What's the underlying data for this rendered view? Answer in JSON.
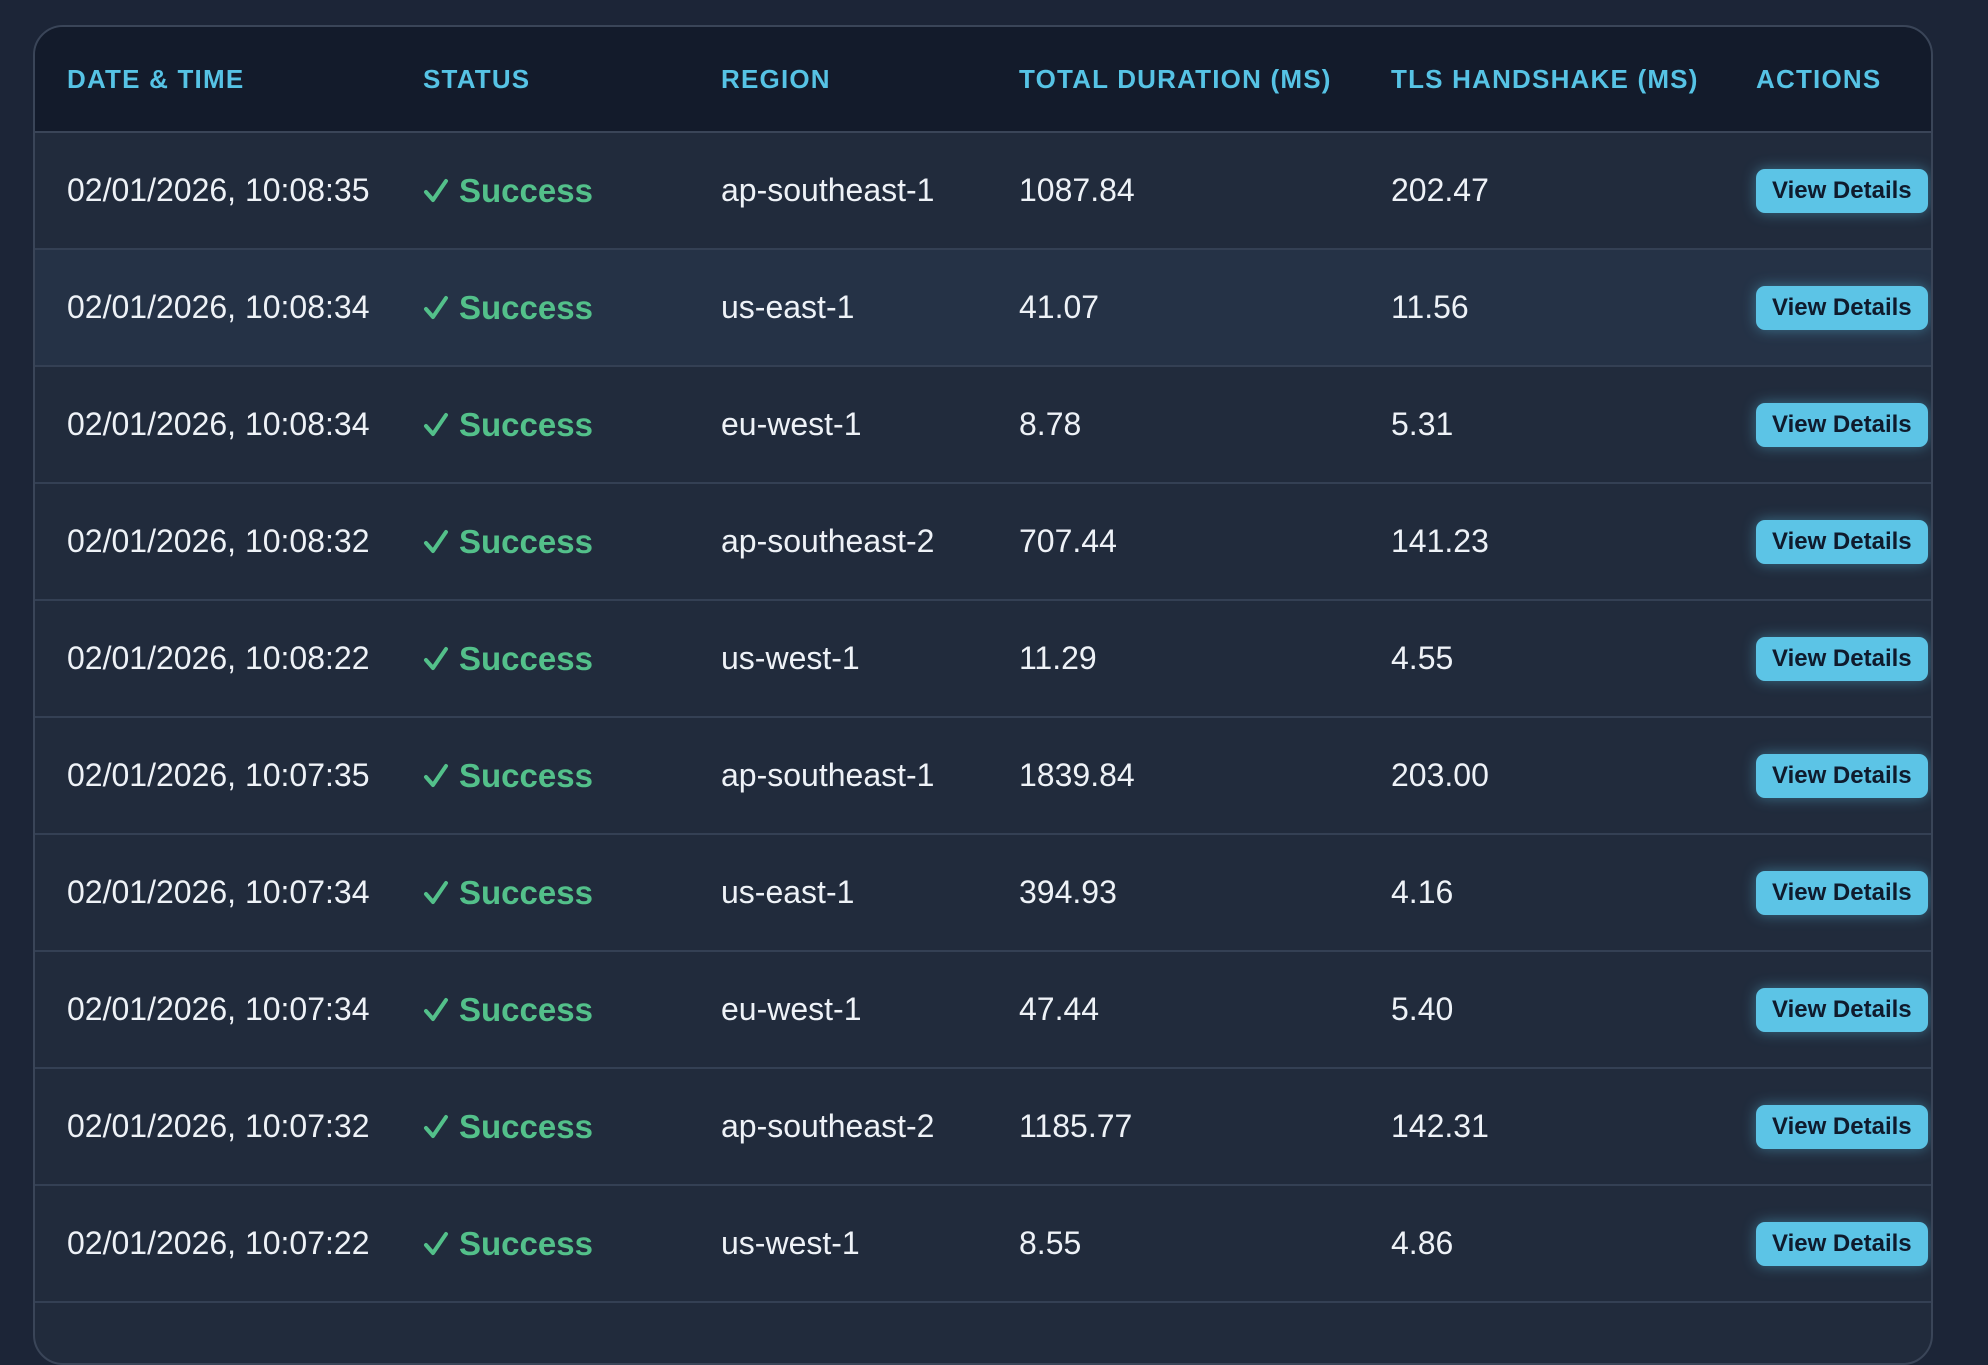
{
  "table": {
    "headers": {
      "datetime": "DATE & TIME",
      "status": "STATUS",
      "region": "REGION",
      "total": "TOTAL DURATION (MS)",
      "tls": "TLS HANDSHAKE (MS)",
      "actions": "ACTIONS"
    },
    "rows": [
      {
        "datetime": "02/01/2026, 10:08:35",
        "status": "Success",
        "region": "ap-southeast-1",
        "total": "1087.84",
        "tls": "202.47",
        "action": "View Details"
      },
      {
        "datetime": "02/01/2026, 10:08:34",
        "status": "Success",
        "region": "us-east-1",
        "total": "41.07",
        "tls": "11.56",
        "action": "View Details"
      },
      {
        "datetime": "02/01/2026, 10:08:34",
        "status": "Success",
        "region": "eu-west-1",
        "total": "8.78",
        "tls": "5.31",
        "action": "View Details"
      },
      {
        "datetime": "02/01/2026, 10:08:32",
        "status": "Success",
        "region": "ap-southeast-2",
        "total": "707.44",
        "tls": "141.23",
        "action": "View Details"
      },
      {
        "datetime": "02/01/2026, 10:08:22",
        "status": "Success",
        "region": "us-west-1",
        "total": "11.29",
        "tls": "4.55",
        "action": "View Details"
      },
      {
        "datetime": "02/01/2026, 10:07:35",
        "status": "Success",
        "region": "ap-southeast-1",
        "total": "1839.84",
        "tls": "203.00",
        "action": "View Details"
      },
      {
        "datetime": "02/01/2026, 10:07:34",
        "status": "Success",
        "region": "us-east-1",
        "total": "394.93",
        "tls": "4.16",
        "action": "View Details"
      },
      {
        "datetime": "02/01/2026, 10:07:34",
        "status": "Success",
        "region": "eu-west-1",
        "total": "47.44",
        "tls": "5.40",
        "action": "View Details"
      },
      {
        "datetime": "02/01/2026, 10:07:32",
        "status": "Success",
        "region": "ap-southeast-2",
        "total": "1185.77",
        "tls": "142.31",
        "action": "View Details"
      },
      {
        "datetime": "02/01/2026, 10:07:22",
        "status": "Success",
        "region": "us-west-1",
        "total": "8.55",
        "tls": "4.86",
        "action": "View Details"
      }
    ]
  },
  "icons": {
    "status_success": "check-icon"
  },
  "colors": {
    "accent": "#5cc4e6",
    "success": "#53c08a",
    "background": "#1c2537"
  }
}
